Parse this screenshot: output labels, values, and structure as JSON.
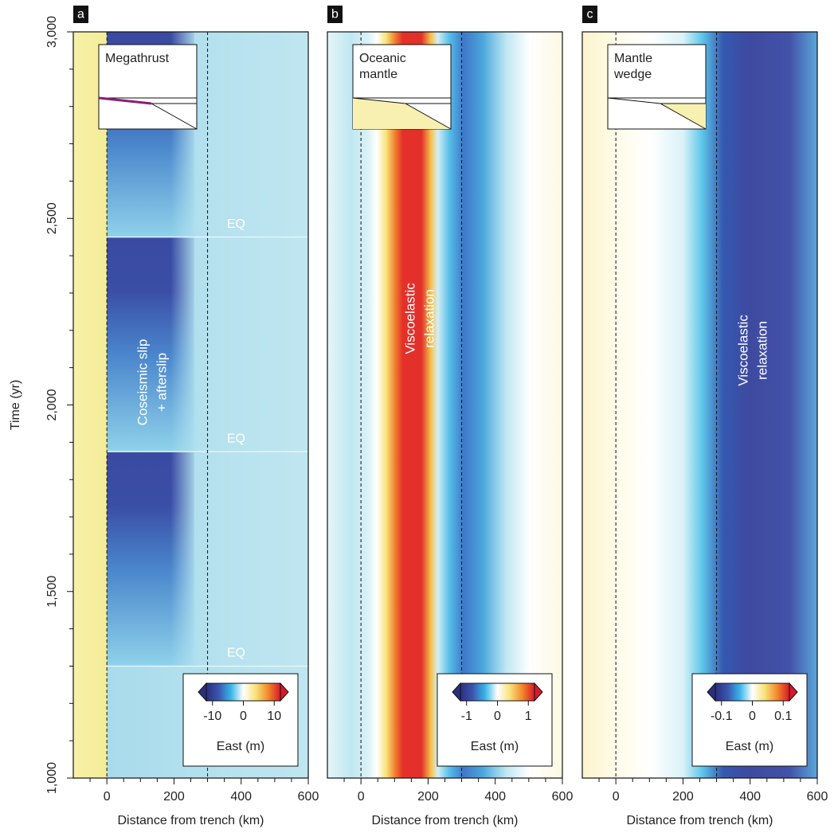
{
  "chart_data": [
    {
      "type": "heatmap",
      "panel_label": "a",
      "inset_title": [
        "Megathrust"
      ],
      "annotation": [
        "Coseismic slip",
        "+ afterslip"
      ],
      "events": [
        {
          "label": "EQ",
          "time": 1300
        },
        {
          "label": "EQ",
          "time": 1875
        },
        {
          "label": "EQ",
          "time": 2450
        }
      ],
      "xlim": [
        -100,
        600
      ],
      "xticks": [
        0,
        200,
        400,
        600
      ],
      "xminorticks": [
        -50,
        50,
        100,
        150,
        250,
        300,
        350,
        450,
        500,
        550
      ],
      "xlabel": "Distance from trench (km)",
      "ylim": [
        1000,
        3000
      ],
      "ylabel": "Time (yr)",
      "yticks": [
        {
          "value": 1000,
          "label": "1,000"
        },
        {
          "value": 1500,
          "label": "1,500"
        },
        {
          "value": 2000,
          "label": "2,000"
        },
        {
          "value": 2500,
          "label": "2,500"
        },
        {
          "value": 3000,
          "label": "3,000"
        }
      ],
      "yminorticks": [
        1100,
        1200,
        1300,
        1400,
        1600,
        1700,
        1800,
        1900,
        2100,
        2200,
        2300,
        2400,
        2600,
        2700,
        2800,
        2900
      ],
      "reference_lines": [
        0,
        300
      ],
      "colorbar": {
        "label": "East (m)",
        "lim": [
          -12,
          12
        ],
        "ticks": [
          -10,
          0,
          10
        ],
        "colors": [
          "#2a2f7d",
          "#3a56b0",
          "#38b6e8",
          "#ffffff",
          "#f8e27a",
          "#f28a2a",
          "#d7182a"
        ]
      }
    },
    {
      "type": "heatmap",
      "panel_label": "b",
      "inset_title": [
        "Oceanic",
        "mantle"
      ],
      "annotation": [
        "Viscoelastic",
        "relaxation"
      ],
      "xlim": [
        -100,
        600
      ],
      "xticks": [
        0,
        200,
        400,
        600
      ],
      "xminorticks": [
        -50,
        50,
        100,
        150,
        250,
        300,
        350,
        450,
        500,
        550
      ],
      "xlabel": "Distance from trench (km)",
      "ylim": [
        1000,
        3000
      ],
      "reference_lines": [
        0,
        300
      ],
      "colorbar": {
        "label": "East (m)",
        "lim": [
          -1.2,
          1.2
        ],
        "ticks": [
          -1,
          0,
          1
        ],
        "colors": [
          "#2a2f7d",
          "#3a56b0",
          "#38b6e8",
          "#ffffff",
          "#f8e27a",
          "#f28a2a",
          "#d7182a"
        ]
      }
    },
    {
      "type": "heatmap",
      "panel_label": "c",
      "inset_title": [
        "Mantle",
        "wedge"
      ],
      "annotation": [
        "Viscoelastic",
        "relaxation"
      ],
      "xlim": [
        -100,
        600
      ],
      "xticks": [
        0,
        200,
        400,
        600
      ],
      "xminorticks": [
        -50,
        50,
        100,
        150,
        250,
        300,
        350,
        450,
        500,
        550
      ],
      "xlabel": "Distance from trench (km)",
      "ylim": [
        1000,
        3000
      ],
      "reference_lines": [
        0,
        300
      ],
      "colorbar": {
        "label": "East (m)",
        "lim": [
          -0.12,
          0.12
        ],
        "ticks": [
          -0.1,
          0,
          0.1
        ],
        "colors": [
          "#2a2f7d",
          "#3a56b0",
          "#38b6e8",
          "#ffffff",
          "#f8e27a",
          "#f28a2a",
          "#d7182a"
        ]
      }
    }
  ]
}
